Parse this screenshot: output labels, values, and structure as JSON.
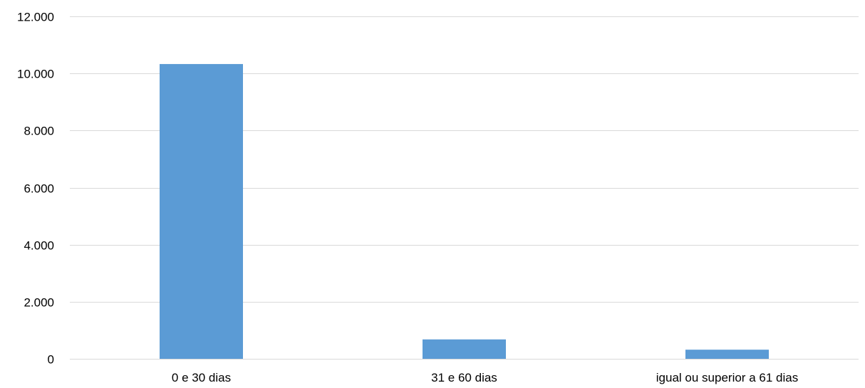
{
  "chart_data": {
    "type": "bar",
    "categories": [
      "0 e 30 dias",
      "31 e 60 dias",
      "igual ou superior a 61 dias"
    ],
    "series": [
      {
        "values": [
          10330,
          680,
          320
        ],
        "color": "#5b9bd5"
      }
    ],
    "ylim": [
      0,
      12000
    ],
    "yticks": [
      0,
      2000,
      4000,
      6000,
      8000,
      10000,
      12000
    ],
    "ytick_labels": [
      "0",
      "2.000",
      "4.000",
      "6.000",
      "8.000",
      "10.000",
      "12.000"
    ],
    "grid": true,
    "legend": "none",
    "title": "",
    "xlabel": "",
    "ylabel": ""
  }
}
